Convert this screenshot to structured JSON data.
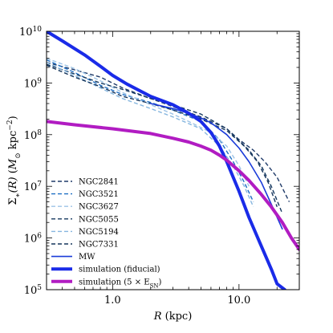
{
  "chart_data": {
    "type": "line",
    "x_scale": "log",
    "y_scale": "log",
    "xlim": [
      0.3,
      30
    ],
    "ylim": [
      100000,
      10000000000
    ],
    "grid": false,
    "legend_position": "lower-left",
    "xlabel": {
      "italic": "R",
      "rest": " (kpc)"
    },
    "ylabel": {
      "lead": "Σ",
      "sub": "∗",
      "italic": "(R)",
      "units_open": " (",
      "units_msun": "M",
      "units_sun": "⊙",
      "units_kpc": " kpc",
      "units_exp": "−2",
      "units_close": ")"
    },
    "xticks": [
      {
        "value": 1,
        "label": "1.0"
      },
      {
        "value": 10,
        "label": "10.0"
      }
    ],
    "yticks": [
      {
        "value": 100000,
        "base": "10",
        "exp": "5"
      },
      {
        "value": 1000000,
        "base": "10",
        "exp": "6"
      },
      {
        "value": 10000000,
        "base": "10",
        "exp": "7"
      },
      {
        "value": 100000000,
        "base": "10",
        "exp": "8"
      },
      {
        "value": 1000000000,
        "base": "10",
        "exp": "9"
      },
      {
        "value": 10000000000,
        "base": "10",
        "exp": "10"
      }
    ],
    "series": [
      {
        "name": "NGC2841",
        "style": "dashed",
        "color": "#1f3a68",
        "width": 1.4,
        "x": [
          0.3,
          0.5,
          0.8,
          1.2,
          2,
          3,
          5,
          8,
          10,
          13,
          16,
          20,
          25
        ],
        "y": [
          2500000000.0,
          1800000000.0,
          1300000000.0,
          800000000.0,
          500000000.0,
          350000000.0,
          220000000.0,
          130000000.0,
          80000000.0,
          50000000.0,
          30000000.0,
          15000000.0,
          5000000.0
        ]
      },
      {
        "name": "NGC3521",
        "style": "dashed",
        "color": "#1f6fc4",
        "width": 1.4,
        "x": [
          0.3,
          0.5,
          0.8,
          1.2,
          2,
          3,
          5,
          7,
          9,
          11,
          13
        ],
        "y": [
          2800000000.0,
          1600000000.0,
          900000000.0,
          600000000.0,
          420000000.0,
          300000000.0,
          180000000.0,
          80000000.0,
          30000000.0,
          12000000.0,
          5000000.0
        ]
      },
      {
        "name": "NGC3627",
        "style": "dashed",
        "color": "#9cc3e6",
        "width": 1.4,
        "x": [
          0.3,
          0.5,
          0.8,
          1.2,
          2,
          3,
          4,
          6,
          8,
          10,
          12
        ],
        "y": [
          3000000000.0,
          1900000000.0,
          1100000000.0,
          650000000.0,
          380000000.0,
          250000000.0,
          180000000.0,
          110000000.0,
          60000000.0,
          25000000.0,
          10000000.0
        ]
      },
      {
        "name": "NGC5055",
        "style": "dashed",
        "color": "#15385f",
        "width": 1.4,
        "x": [
          0.3,
          0.5,
          0.8,
          1.2,
          2,
          3,
          5,
          8,
          12,
          15,
          18,
          22
        ],
        "y": [
          2300000000.0,
          1500000000.0,
          1000000000.0,
          750000000.0,
          500000000.0,
          380000000.0,
          250000000.0,
          130000000.0,
          50000000.0,
          25000000.0,
          10000000.0,
          3000000.0
        ]
      },
      {
        "name": "NGC5194",
        "style": "dashed",
        "color": "#86b6df",
        "width": 1.4,
        "x": [
          0.3,
          0.5,
          0.8,
          1.2,
          2,
          3,
          5,
          7,
          9,
          11,
          13
        ],
        "y": [
          2500000000.0,
          1400000000.0,
          800000000.0,
          500000000.0,
          320000000.0,
          220000000.0,
          130000000.0,
          60000000.0,
          25000000.0,
          10000000.0,
          4000000.0
        ]
      },
      {
        "name": "NGC7331",
        "style": "dashed",
        "color": "#15355c",
        "width": 1.4,
        "x": [
          0.3,
          0.5,
          0.8,
          1.2,
          2,
          3,
          5,
          8,
          11,
          14,
          17,
          20
        ],
        "y": [
          2200000000.0,
          1300000000.0,
          850000000.0,
          550000000.0,
          400000000.0,
          300000000.0,
          200000000.0,
          120000000.0,
          60000000.0,
          30000000.0,
          12000000.0,
          4000000.0
        ]
      },
      {
        "name": "MW",
        "style": "solid",
        "color": "#1a3bd9",
        "width": 1.6,
        "x": [
          2,
          3,
          4,
          5,
          6,
          8,
          10,
          12,
          15,
          18,
          22
        ],
        "y": [
          400000000.0,
          320000000.0,
          260000000.0,
          210000000.0,
          170000000.0,
          100000000.0,
          55000000.0,
          30000000.0,
          12000000.0,
          4500000.0,
          1500000.0
        ]
      },
      {
        "name": "simulation (fiducial)",
        "style": "solid",
        "color": "#1a2be8",
        "width": 4,
        "x": [
          0.3,
          0.4,
          0.6,
          0.8,
          1.0,
          1.3,
          2,
          3,
          4,
          5,
          6,
          7,
          8,
          9,
          10,
          12,
          15,
          18,
          20,
          23
        ],
        "y": [
          10000000000.0,
          6500000000.0,
          3500000000.0,
          2100000000.0,
          1400000000.0,
          950000000.0,
          550000000.0,
          380000000.0,
          260000000.0,
          180000000.0,
          110000000.0,
          60000000.0,
          30000000.0,
          15000000.0,
          8000000.0,
          2500000.0,
          700000.0,
          250000.0,
          130000.0,
          100000.0
        ]
      },
      {
        "name": "simulation (5 × E_SN)",
        "label_main": "simulation (5",
        "label_times": " × ",
        "label_E": "E",
        "label_sub": "SN",
        "label_close": ")",
        "style": "solid",
        "color": "#b11cc2",
        "width": 4,
        "x": [
          0.3,
          0.5,
          1.0,
          2,
          3,
          4,
          5,
          6,
          7,
          8,
          10,
          12,
          15,
          18,
          22,
          26,
          30
        ],
        "y": [
          180000000.0,
          155000000.0,
          130000000.0,
          105000000.0,
          85000000.0,
          72000000.0,
          60000000.0,
          50000000.0,
          40000000.0,
          32000000.0,
          20000000.0,
          13000000.0,
          7000000.0,
          4000000.0,
          2000000.0,
          1000000.0,
          600000.0
        ]
      }
    ]
  }
}
